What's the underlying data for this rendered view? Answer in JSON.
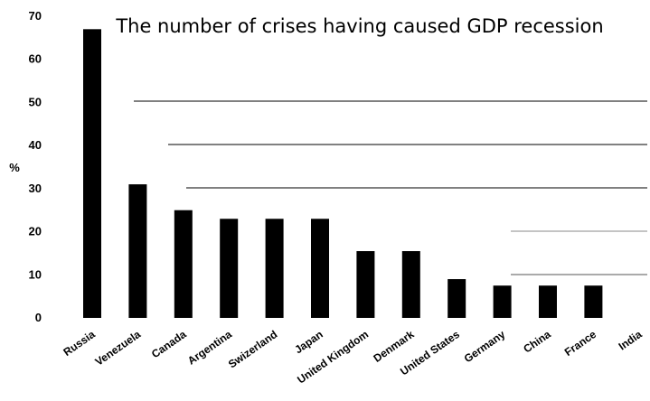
{
  "chart_data": {
    "type": "bar",
    "title": "The number of crises having caused GDP recession",
    "xlabel": "",
    "ylabel": "%",
    "ylim": [
      0,
      70
    ],
    "yticks": [
      "0",
      "10",
      "20",
      "30",
      "40",
      "50",
      "60",
      "70"
    ],
    "categories": [
      "Russia",
      "Venezuela",
      "Canada",
      "Argentina",
      "Swizerland",
      "Japan",
      "United Kingdom",
      "Denmark",
      "United States",
      "Germany",
      "China",
      "France",
      "India"
    ],
    "values": [
      67,
      31,
      25,
      23,
      23,
      23,
      15.5,
      15.5,
      9,
      7.5,
      7.5,
      7.5,
      0
    ],
    "bar_color": "#000000",
    "grid": false
  }
}
